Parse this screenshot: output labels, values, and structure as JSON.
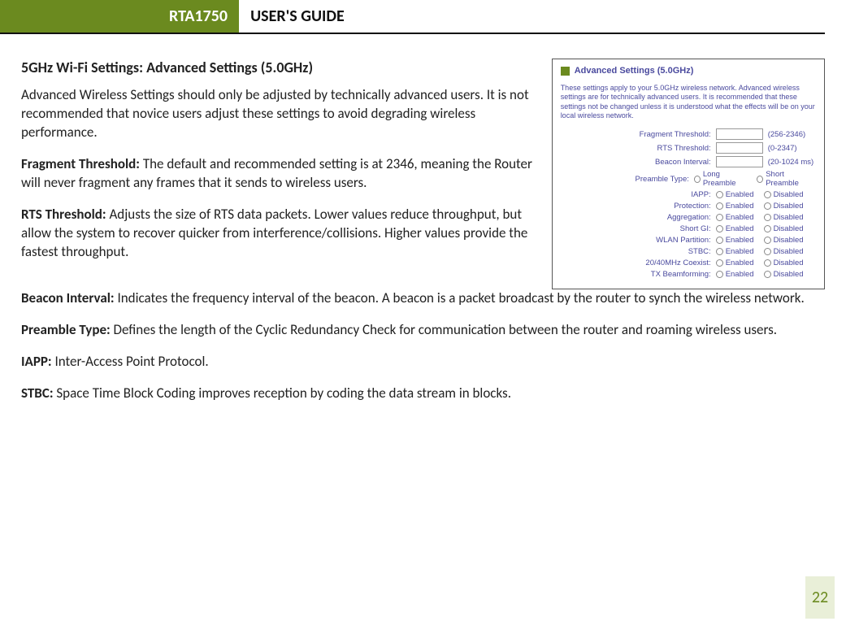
{
  "header": {
    "model": "RTA1750",
    "guide": "USER'S GUIDE",
    "accent_color": "#6b8a1f",
    "text_color": "#111111"
  },
  "page_number": "22",
  "page_badge": {
    "bg": "#e9efd8",
    "fg": "#6b8a1f"
  },
  "section_title": "5GHz Wi-Fi Settings: Advanced Settings (5.0GHz)",
  "intro": "Advanced Wireless Settings should only be adjusted by technically advanced users. It is not recommended that novice users adjust these settings to avoid degrading wireless performance.",
  "definitions": [
    {
      "term": "Fragment Threshold:",
      "text": " The default and recommended setting is at 2346, meaning the Router will never fragment any frames that it sends to wireless users."
    },
    {
      "term": "RTS Threshold:",
      "text": " Adjusts the size of RTS data packets. Lower values reduce throughput, but allow the system to recover quicker from interference/collisions. Higher values provide the fastest throughput."
    },
    {
      "term": "Beacon Interval:",
      "text": " Indicates the frequency interval of the beacon. A beacon is a packet broadcast by the router to synch the wireless network."
    },
    {
      "term": "Preamble Type:",
      "text": " Defines the length of the Cyclic Redundancy Check for communication between the router and roaming wireless users."
    },
    {
      "term": "IAPP:",
      "text": " Inter-Access Point Protocol."
    },
    {
      "term": "STBC:",
      "text": " Space Time Block Coding improves reception by coding the data stream in blocks."
    }
  ],
  "screenshot": {
    "title": "Advanced Settings (5.0GHz)",
    "title_color": "#4a4a9e",
    "accent_square": "#6b8a1f",
    "border_color": "#555555",
    "description": "These settings apply to your 5.0GHz wireless network. Advanced wireless settings are for technically advanced users. It is recommended that these settings not be changed unless it is understood what the effects will be on your local wireless network.",
    "text_rows": [
      {
        "label": "Fragment Threshold:",
        "range": "(256-2346)"
      },
      {
        "label": "RTS Threshold:",
        "range": "(0-2347)"
      },
      {
        "label": "Beacon Interval:",
        "range": "(20-1024 ms)"
      }
    ],
    "radio_rows": [
      {
        "label": "Preamble Type:",
        "opt1": "Long Preamble",
        "opt2": "Short Preamble"
      },
      {
        "label": "IAPP:",
        "opt1": "Enabled",
        "opt2": "Disabled"
      },
      {
        "label": "Protection:",
        "opt1": "Enabled",
        "opt2": "Disabled"
      },
      {
        "label": "Aggregation:",
        "opt1": "Enabled",
        "opt2": "Disabled"
      },
      {
        "label": "Short GI:",
        "opt1": "Enabled",
        "opt2": "Disabled"
      },
      {
        "label": "WLAN Partition:",
        "opt1": "Enabled",
        "opt2": "Disabled"
      },
      {
        "label": "STBC:",
        "opt1": "Enabled",
        "opt2": "Disabled"
      },
      {
        "label": "20/40MHz Coexist:",
        "opt1": "Enabled",
        "opt2": "Disabled"
      },
      {
        "label": "TX Beamforming:",
        "opt1": "Enabled",
        "opt2": "Disabled"
      }
    ]
  }
}
